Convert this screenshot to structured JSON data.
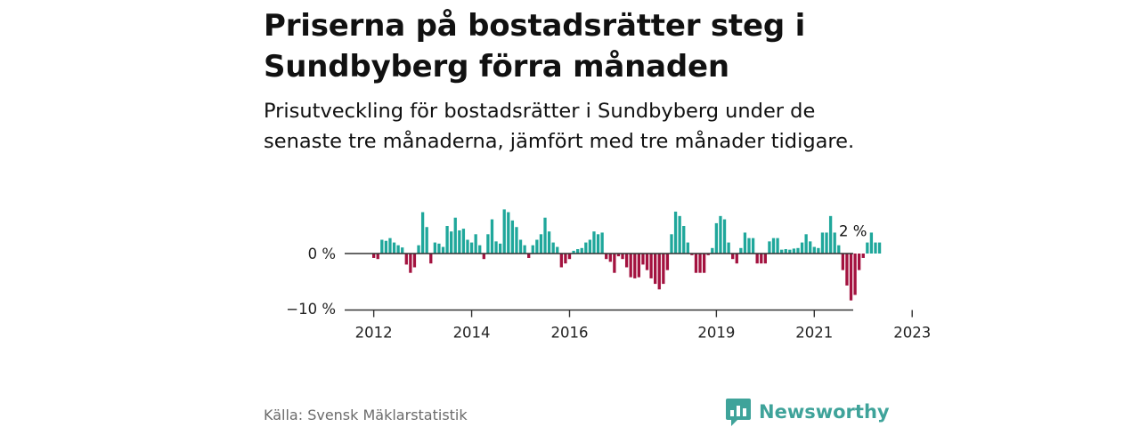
{
  "header": {
    "title": "Priserna på bostadsrätter steg i Sundbyberg förra månaden",
    "subtitle": "Prisutveckling för bostadsrätter i Sundbyberg under de senaste tre månaderna, jämfört med tre månader tidigare."
  },
  "footer": {
    "source": "Källa: Svensk Mäklarstatistik",
    "brand": "Newsworthy"
  },
  "colors": {
    "positive": "#1fa79b",
    "negative": "#a3123f",
    "axis": "#333333",
    "brand": "#3fa39a"
  },
  "chart_data": {
    "type": "bar",
    "title": "Priserna på bostadsrätter steg i Sundbyberg förra månaden",
    "subtitle": "Prisutveckling för bostadsrätter i Sundbyberg under de senaste tre månaderna, jämfört med tre månader tidigare.",
    "xlabel": "",
    "ylabel": "",
    "unit": "%",
    "ylim": [
      -10,
      8
    ],
    "yticks": [
      {
        "value": 0,
        "label": "0 %"
      },
      {
        "value": -10,
        "label": "−10 %"
      }
    ],
    "xticks": [
      {
        "year": 2012,
        "label": "2012"
      },
      {
        "year": 2014,
        "label": "2014"
      },
      {
        "year": 2016,
        "label": "2016"
      },
      {
        "year": 2019,
        "label": "2019"
      },
      {
        "year": 2021,
        "label": "2021"
      },
      {
        "year": 2023,
        "label": "2023"
      }
    ],
    "x_start": "2012-01",
    "x_end": "2023-12",
    "annotation": {
      "text": "2 %",
      "index": 114
    },
    "values": [
      -0.8,
      -1.0,
      2.5,
      2.3,
      2.8,
      2.0,
      1.5,
      1.1,
      -2.0,
      -3.5,
      -2.5,
      1.5,
      7.5,
      4.8,
      -1.8,
      2.0,
      1.8,
      1.2,
      5.0,
      4.0,
      6.5,
      4.2,
      4.5,
      2.5,
      2.0,
      3.5,
      1.5,
      -1.0,
      3.5,
      6.2,
      2.2,
      1.8,
      8.0,
      7.5,
      6.0,
      4.8,
      2.5,
      1.5,
      -0.8,
      1.5,
      2.5,
      3.5,
      6.5,
      4.0,
      2.0,
      1.2,
      -2.5,
      -1.8,
      -1.0,
      0.5,
      0.8,
      1.0,
      2.0,
      2.5,
      4.0,
      3.5,
      3.8,
      -1.0,
      -1.5,
      -3.5,
      -0.5,
      -1.0,
      -2.5,
      -4.3,
      -4.5,
      -4.3,
      -2.0,
      -3.0,
      -4.5,
      -5.5,
      -6.5,
      -5.5,
      -3.0,
      3.5,
      7.6,
      6.8,
      5.0,
      2.0,
      -0.3,
      -3.5,
      -3.5,
      -3.5,
      -0.3,
      1.0,
      5.5,
      6.8,
      6.2,
      2.0,
      -1.0,
      -1.8,
      1.0,
      3.8,
      2.8,
      2.8,
      -1.8,
      -1.8,
      -1.8,
      2.2,
      2.8,
      2.8,
      0.7,
      0.8,
      0.7,
      0.9,
      1.0,
      2.0,
      3.5,
      2.2,
      1.2,
      1.0,
      3.8,
      3.8,
      6.8,
      3.8,
      1.5,
      -3.0,
      -5.8,
      -8.5,
      -7.5,
      -3.0,
      -0.8,
      2.0,
      3.8,
      2.0,
      2.0
    ]
  }
}
